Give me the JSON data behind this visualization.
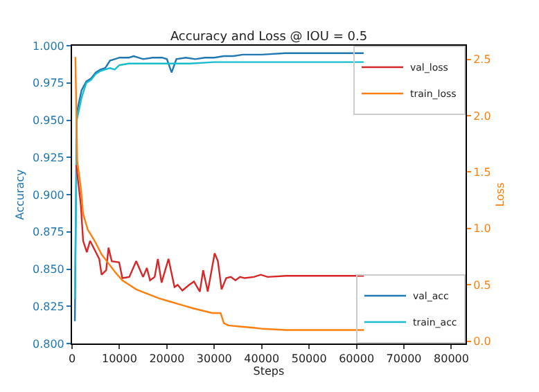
{
  "chart_data": {
    "type": "line",
    "title": "Accuracy and Loss @ IOU = 0.5",
    "xlabel": "Steps",
    "ylabel": "Accuracy",
    "y2label": "Loss",
    "xlim": [
      0,
      83000
    ],
    "xticks": [
      0,
      10000,
      20000,
      30000,
      40000,
      50000,
      60000,
      70000,
      80000
    ],
    "ylim": [
      0.8,
      1.0
    ],
    "yticks": [
      {
        "value": 0.8,
        "label": "0.800"
      },
      {
        "value": 0.825,
        "label": "0.825"
      },
      {
        "value": 0.85,
        "label": "0.850"
      },
      {
        "value": 0.875,
        "label": "0.875"
      },
      {
        "value": 0.9,
        "label": "0.900"
      },
      {
        "value": 0.925,
        "label": "0.925"
      },
      {
        "value": 0.95,
        "label": "0.950"
      },
      {
        "value": 0.975,
        "label": "0.975"
      },
      {
        "value": 1.0,
        "label": "1.000"
      }
    ],
    "y2lim": [
      -0.02,
      2.62
    ],
    "y2ticks": [
      {
        "value": 0,
        "label": "0.0"
      },
      0.5,
      {
        "value": 1,
        "label": "1.0"
      },
      1.5,
      {
        "value": 2,
        "label": "2.0"
      },
      2.5
    ],
    "legend": "right",
    "series": [
      {
        "name": "val_loss",
        "color": "#d62728",
        "axis": "y2",
        "x": [
          876,
          1850,
          2336,
          3114,
          3796,
          4770,
          5740,
          6230,
          7200,
          7690,
          8370,
          9930,
          10610,
          12070,
          13530,
          14990,
          15770,
          16450,
          17420,
          18100,
          18880,
          20340,
          21610,
          22290,
          23260,
          24720,
          25700,
          26960,
          27650,
          28620,
          30080,
          30760,
          31540,
          32510,
          33480,
          34460,
          35430,
          36400,
          38350,
          39810,
          41270,
          45170,
          61530
        ],
        "values": [
          1.56,
          1.21,
          0.89,
          0.79,
          0.89,
          0.81,
          0.73,
          0.59,
          0.63,
          0.83,
          0.71,
          0.7,
          0.56,
          0.57,
          0.71,
          0.57,
          0.65,
          0.54,
          0.57,
          0.73,
          0.52,
          0.73,
          0.48,
          0.5,
          0.45,
          0.5,
          0.53,
          0.44,
          0.63,
          0.44,
          0.78,
          0.71,
          0.46,
          0.56,
          0.57,
          0.54,
          0.57,
          0.56,
          0.57,
          0.59,
          0.57,
          0.58,
          0.58
        ]
      },
      {
        "name": "train_loss",
        "color": "#ff7f0e",
        "axis": "y2",
        "x": [
          700,
          1100,
          1850,
          2336,
          3310,
          4770,
          6230,
          7690,
          9150,
          10610,
          12070,
          13530,
          15960,
          18390,
          20820,
          23260,
          25700,
          27650,
          29590,
          31340,
          32020,
          33000,
          35430,
          38350,
          40300,
          45170,
          61530
        ],
        "values": [
          2.52,
          1.6,
          1.36,
          1.13,
          0.99,
          0.89,
          0.77,
          0.69,
          0.61,
          0.54,
          0.5,
          0.46,
          0.42,
          0.38,
          0.35,
          0.32,
          0.29,
          0.27,
          0.25,
          0.25,
          0.16,
          0.14,
          0.13,
          0.12,
          0.11,
          0.1,
          0.1
        ]
      },
      {
        "name": "val_acc",
        "color": "#1f77b4",
        "axis": "y",
        "x": [
          600,
          1000,
          2000,
          3000,
          4000,
          5000,
          6000,
          7000,
          8000,
          9000,
          10000,
          12000,
          13000,
          15000,
          17000,
          19000,
          20000,
          21000,
          22000,
          24000,
          26000,
          28000,
          30000,
          32000,
          34000,
          36000,
          38000,
          40000,
          45000,
          50000,
          55000,
          61500
        ],
        "values": [
          0.815,
          0.955,
          0.97,
          0.976,
          0.978,
          0.982,
          0.984,
          0.985,
          0.99,
          0.991,
          0.992,
          0.992,
          0.993,
          0.991,
          0.992,
          0.992,
          0.991,
          0.982,
          0.991,
          0.992,
          0.991,
          0.992,
          0.992,
          0.993,
          0.993,
          0.994,
          0.994,
          0.994,
          0.995,
          0.995,
          0.995,
          0.995
        ]
      },
      {
        "name": "train_acc",
        "color": "#17becf",
        "axis": "y",
        "x": [
          600,
          1000,
          2000,
          3000,
          4000,
          5000,
          6000,
          7000,
          8000,
          9000,
          10000,
          12000,
          15000,
          20000,
          25000,
          30000,
          40000,
          61500
        ],
        "values": [
          0.83,
          0.95,
          0.965,
          0.975,
          0.977,
          0.981,
          0.983,
          0.984,
          0.985,
          0.984,
          0.987,
          0.988,
          0.988,
          0.988,
          0.988,
          0.989,
          0.989,
          0.989
        ]
      }
    ]
  }
}
